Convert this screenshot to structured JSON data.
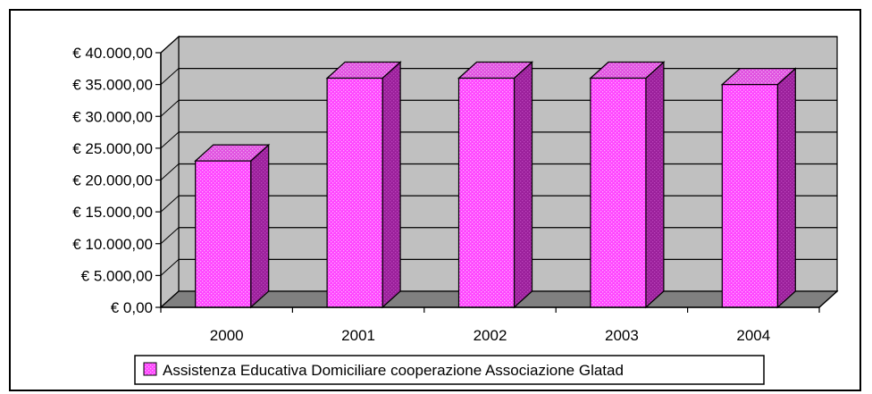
{
  "chart_data": {
    "type": "bar",
    "categories": [
      "2000",
      "2001",
      "2002",
      "2003",
      "2004"
    ],
    "series": [
      {
        "name": "Assistenza Educativa Domiciliare cooperazione Associazione Glatad",
        "values": [
          23000,
          36000,
          36000,
          36000,
          35000
        ]
      }
    ],
    "ylim": [
      0,
      40000
    ],
    "yticks": [
      "€ 0,00",
      "€ 5.000,00",
      "€ 10.000,00",
      "€ 15.000,00",
      "€ 20.000,00",
      "€ 25.000,00",
      "€ 30.000,00",
      "€ 35.000,00",
      "€ 40.000,00"
    ],
    "grid": true,
    "legend": "bottom",
    "bar_color": "#ff33ff",
    "bar_side_color": "#a020a0",
    "bar_top_color": "#ee66ee",
    "wall_color": "#c0c0c0",
    "floor_color": "#808080"
  }
}
